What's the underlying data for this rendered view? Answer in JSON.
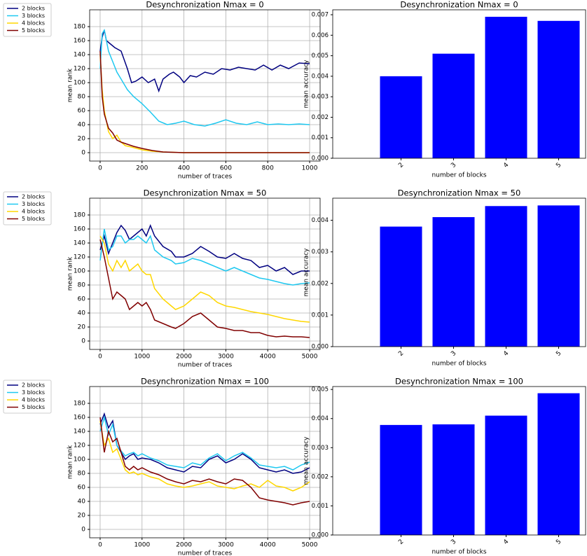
{
  "chart_data": [
    {
      "type": "line",
      "title": "Desynchronization Nmax = 0",
      "xlabel": "number of traces",
      "ylabel": "mean rank",
      "xlim": [
        -50,
        1050
      ],
      "ylim": [
        -12,
        204
      ],
      "xticks": [
        0,
        200,
        400,
        600,
        800,
        1000
      ],
      "yticks": [
        0,
        20,
        40,
        60,
        80,
        100,
        120,
        140,
        160,
        180
      ],
      "grid": true,
      "legend": "outside-left",
      "series": [
        {
          "name": "2 blocks",
          "color": "#000080",
          "x": [
            0,
            10,
            20,
            30,
            50,
            70,
            100,
            130,
            150,
            170,
            200,
            230,
            260,
            280,
            300,
            330,
            350,
            380,
            400,
            430,
            460,
            500,
            540,
            580,
            620,
            660,
            700,
            740,
            780,
            820,
            860,
            900,
            950,
            1000
          ],
          "values": [
            145,
            165,
            175,
            160,
            155,
            150,
            145,
            120,
            100,
            102,
            108,
            100,
            105,
            88,
            105,
            112,
            115,
            108,
            100,
            110,
            108,
            115,
            112,
            120,
            118,
            122,
            120,
            118,
            125,
            118,
            125,
            120,
            128,
            127
          ]
        },
        {
          "name": "3 blocks",
          "color": "#1ec8f0",
          "x": [
            0,
            10,
            20,
            40,
            60,
            80,
            100,
            130,
            160,
            200,
            240,
            280,
            320,
            360,
            400,
            450,
            500,
            550,
            600,
            650,
            700,
            750,
            800,
            850,
            900,
            950,
            1000
          ],
          "values": [
            120,
            170,
            175,
            145,
            130,
            115,
            105,
            90,
            80,
            70,
            58,
            45,
            40,
            42,
            45,
            40,
            38,
            42,
            47,
            42,
            40,
            44,
            40,
            41,
            40,
            41,
            40
          ]
        },
        {
          "name": "4 blocks",
          "color": "#ffd700",
          "x": [
            0,
            10,
            20,
            40,
            60,
            80,
            100,
            120,
            150,
            200,
            250,
            300,
            400,
            500,
            600,
            1000
          ],
          "values": [
            140,
            90,
            60,
            30,
            20,
            25,
            15,
            10,
            8,
            4,
            2,
            1,
            0,
            0,
            0,
            0
          ]
        },
        {
          "name": "5 blocks",
          "color": "#800000",
          "x": [
            0,
            10,
            20,
            40,
            60,
            80,
            100,
            130,
            160,
            200,
            250,
            300,
            400,
            500,
            1000
          ],
          "values": [
            145,
            80,
            55,
            35,
            28,
            18,
            15,
            12,
            9,
            6,
            3,
            1,
            0,
            0,
            0
          ]
        }
      ]
    },
    {
      "type": "bar",
      "title": "Desynchronization Nmax = 0",
      "xlabel": "number of blocks",
      "ylabel": "mean accuracy",
      "color": "#0000ff",
      "categories": [
        "2",
        "3",
        "4",
        "5"
      ],
      "values": [
        0.004,
        0.0051,
        0.0069,
        0.0067
      ],
      "ylim": [
        0,
        0.00724
      ],
      "yticks": [
        {
          "value": 0,
          "label": "0.000"
        },
        {
          "value": 0.001,
          "label": "0.001"
        },
        {
          "value": 0.002,
          "label": "0.002"
        },
        {
          "value": 0.003,
          "label": "0.003"
        },
        {
          "value": 0.004,
          "label": "0.004"
        },
        {
          "value": 0.005,
          "label": "0.005"
        },
        {
          "value": 0.006,
          "label": "0.006"
        },
        {
          "value": 0.007,
          "label": "0.007"
        }
      ]
    },
    {
      "type": "line",
      "title": "Desynchronization Nmax = 50",
      "xlabel": "number of traces",
      "ylabel": "mean rank",
      "xlim": [
        -250,
        5250
      ],
      "ylim": [
        -12,
        204
      ],
      "xticks": [
        0,
        1000,
        2000,
        3000,
        4000,
        5000
      ],
      "yticks": [
        0,
        20,
        40,
        60,
        80,
        100,
        120,
        140,
        160,
        180
      ],
      "grid": true,
      "legend": "outside-left",
      "series": [
        {
          "name": "2 blocks",
          "color": "#000080",
          "x": [
            0,
            100,
            200,
            300,
            400,
            500,
            600,
            700,
            800,
            900,
            1000,
            1100,
            1200,
            1300,
            1500,
            1700,
            1800,
            2000,
            2200,
            2400,
            2600,
            2800,
            3000,
            3200,
            3400,
            3600,
            3800,
            4000,
            4200,
            4400,
            4600,
            4800,
            5000
          ],
          "values": [
            130,
            150,
            125,
            140,
            155,
            165,
            158,
            145,
            150,
            155,
            160,
            150,
            165,
            150,
            135,
            128,
            120,
            120,
            125,
            135,
            128,
            120,
            118,
            125,
            118,
            115,
            105,
            108,
            100,
            105,
            95,
            100,
            100
          ]
        },
        {
          "name": "3 blocks",
          "color": "#1ec8f0",
          "x": [
            0,
            100,
            200,
            300,
            400,
            500,
            600,
            700,
            800,
            900,
            1000,
            1100,
            1200,
            1300,
            1500,
            1700,
            1800,
            2000,
            2200,
            2400,
            2600,
            2800,
            3000,
            3200,
            3400,
            3600,
            3800,
            4000,
            4200,
            4400,
            4600,
            4800,
            5000
          ],
          "values": [
            115,
            160,
            130,
            135,
            150,
            150,
            140,
            145,
            145,
            150,
            145,
            140,
            150,
            130,
            120,
            115,
            110,
            112,
            118,
            115,
            110,
            105,
            100,
            105,
            100,
            95,
            90,
            88,
            85,
            82,
            80,
            82,
            83
          ]
        },
        {
          "name": "4 blocks",
          "color": "#ffd700",
          "x": [
            0,
            100,
            200,
            300,
            400,
            500,
            600,
            700,
            800,
            900,
            1000,
            1100,
            1200,
            1300,
            1500,
            1700,
            1800,
            2000,
            2200,
            2400,
            2600,
            2800,
            3000,
            3200,
            3400,
            3600,
            3800,
            4000,
            4200,
            4400,
            4600,
            4800,
            5000
          ],
          "values": [
            150,
            140,
            110,
            100,
            115,
            105,
            115,
            100,
            105,
            110,
            100,
            95,
            95,
            75,
            60,
            50,
            45,
            50,
            60,
            70,
            65,
            55,
            50,
            48,
            45,
            42,
            40,
            38,
            35,
            32,
            30,
            28,
            27
          ]
        },
        {
          "name": "5 blocks",
          "color": "#800000",
          "x": [
            0,
            100,
            200,
            300,
            400,
            500,
            600,
            700,
            800,
            900,
            1000,
            1100,
            1200,
            1300,
            1500,
            1700,
            1800,
            2000,
            2200,
            2400,
            2600,
            2800,
            3000,
            3200,
            3400,
            3600,
            3800,
            4000,
            4200,
            4400,
            4600,
            4800,
            5000
          ],
          "values": [
            145,
            120,
            90,
            60,
            70,
            65,
            60,
            45,
            50,
            55,
            50,
            55,
            45,
            30,
            25,
            20,
            18,
            25,
            35,
            40,
            30,
            20,
            18,
            15,
            15,
            12,
            12,
            8,
            6,
            7,
            6,
            6,
            5
          ]
        }
      ]
    },
    {
      "type": "bar",
      "title": "Desynchronization Nmax = 50",
      "xlabel": "number of blocks",
      "ylabel": "mean accuracy",
      "color": "#0000ff",
      "categories": [
        "2",
        "3",
        "4",
        "5"
      ],
      "values": [
        0.0038,
        0.0041,
        0.00445,
        0.00447
      ],
      "ylim": [
        0,
        0.0047
      ],
      "yticks": [
        {
          "value": 0,
          "label": "0.000"
        },
        {
          "value": 0.001,
          "label": "0.001"
        },
        {
          "value": 0.002,
          "label": "0.002"
        },
        {
          "value": 0.003,
          "label": "0.003"
        },
        {
          "value": 0.004,
          "label": "0.004"
        }
      ]
    },
    {
      "type": "line",
      "title": "Desynchronization Nmax = 100",
      "xlabel": "number of traces",
      "ylabel": "mean rank",
      "xlim": [
        -250,
        5250
      ],
      "ylim": [
        -12,
        204
      ],
      "xticks": [
        0,
        1000,
        2000,
        3000,
        4000,
        5000
      ],
      "yticks": [
        0,
        20,
        40,
        60,
        80,
        100,
        120,
        140,
        160,
        180
      ],
      "grid": true,
      "legend": "outside-left",
      "series": [
        {
          "name": "2 blocks",
          "color": "#000080",
          "x": [
            0,
            100,
            200,
            300,
            400,
            500,
            600,
            700,
            800,
            900,
            1000,
            1200,
            1400,
            1600,
            1800,
            2000,
            2200,
            2400,
            2600,
            2800,
            3000,
            3200,
            3400,
            3600,
            3800,
            4000,
            4200,
            4400,
            4600,
            4800,
            5000
          ],
          "values": [
            150,
            165,
            145,
            155,
            120,
            110,
            100,
            105,
            108,
            100,
            102,
            100,
            95,
            88,
            85,
            82,
            90,
            88,
            100,
            105,
            95,
            100,
            108,
            100,
            88,
            85,
            82,
            85,
            80,
            82,
            88
          ]
        },
        {
          "name": "3 blocks",
          "color": "#1ec8f0",
          "x": [
            0,
            100,
            200,
            300,
            400,
            500,
            600,
            700,
            800,
            900,
            1000,
            1200,
            1400,
            1600,
            1800,
            2000,
            2200,
            2400,
            2600,
            2800,
            3000,
            3200,
            3400,
            3600,
            3800,
            4000,
            4200,
            4400,
            4600,
            4800,
            5000
          ],
          "values": [
            140,
            160,
            135,
            150,
            120,
            112,
            105,
            108,
            110,
            105,
            108,
            102,
            98,
            92,
            90,
            88,
            95,
            92,
            102,
            108,
            98,
            105,
            110,
            102,
            92,
            90,
            88,
            90,
            85,
            92,
            96
          ]
        },
        {
          "name": "4 blocks",
          "color": "#ffd700",
          "x": [
            0,
            100,
            200,
            300,
            400,
            500,
            600,
            700,
            800,
            900,
            1000,
            1200,
            1400,
            1600,
            1800,
            2000,
            2200,
            2400,
            2600,
            2800,
            3000,
            3200,
            3400,
            3600,
            3800,
            4000,
            4200,
            4400,
            4600,
            4800,
            5000
          ],
          "values": [
            155,
            120,
            130,
            110,
            115,
            100,
            85,
            80,
            82,
            78,
            80,
            75,
            72,
            65,
            62,
            60,
            62,
            65,
            68,
            62,
            60,
            58,
            62,
            65,
            60,
            70,
            62,
            60,
            55,
            60,
            68
          ]
        },
        {
          "name": "5 blocks",
          "color": "#800000",
          "x": [
            0,
            100,
            200,
            300,
            400,
            500,
            600,
            700,
            800,
            900,
            1000,
            1200,
            1400,
            1600,
            1800,
            2000,
            2200,
            2400,
            2600,
            2800,
            3000,
            3200,
            3400,
            3600,
            3800,
            4000,
            4200,
            4400,
            4600,
            4800,
            5000
          ],
          "values": [
            160,
            110,
            140,
            125,
            130,
            110,
            90,
            85,
            90,
            85,
            88,
            82,
            78,
            72,
            68,
            65,
            70,
            68,
            72,
            68,
            65,
            72,
            70,
            60,
            45,
            42,
            40,
            38,
            35,
            38,
            40
          ]
        }
      ]
    },
    {
      "type": "bar",
      "title": "Desynchronization Nmax = 100",
      "xlabel": "number of blocks",
      "ylabel": "mean accuracy",
      "color": "#0000ff",
      "categories": [
        "2",
        "3",
        "4",
        "5"
      ],
      "values": [
        0.00378,
        0.0038,
        0.0041,
        0.00487
      ],
      "ylim": [
        0,
        0.0051
      ],
      "yticks": [
        {
          "value": 0,
          "label": "0.000"
        },
        {
          "value": 0.001,
          "label": "0.001"
        },
        {
          "value": 0.002,
          "label": "0.002"
        },
        {
          "value": 0.003,
          "label": "0.003"
        },
        {
          "value": 0.004,
          "label": "0.004"
        },
        {
          "value": 0.005,
          "label": "0.005"
        }
      ]
    }
  ]
}
